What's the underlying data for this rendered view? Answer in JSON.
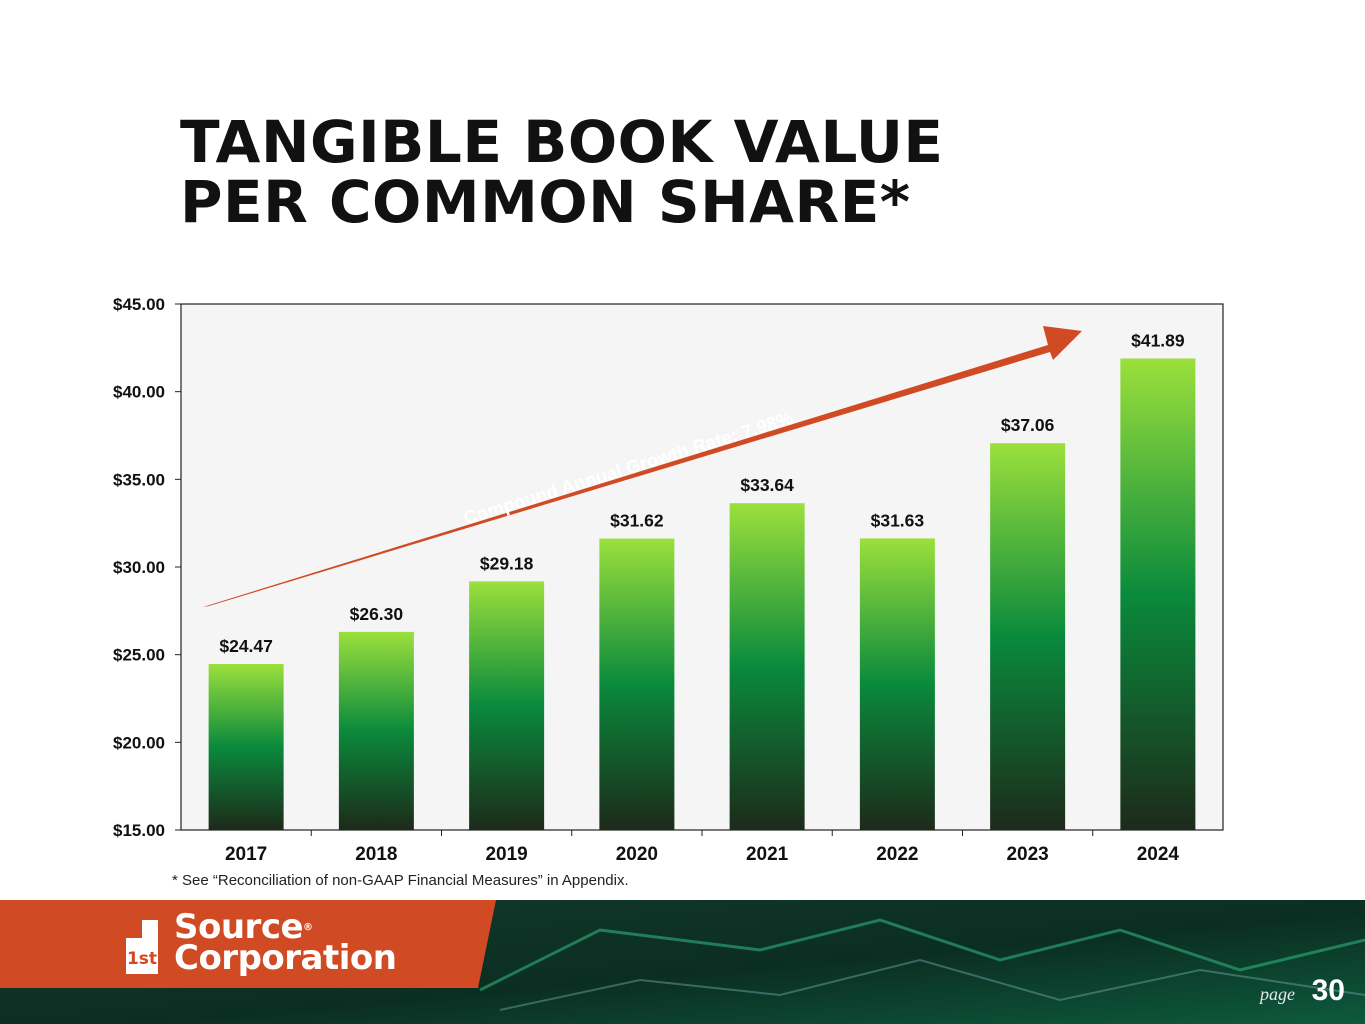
{
  "slide": {
    "title_line1": "TANGIBLE BOOK VALUE",
    "title_line2": "PER COMMON SHARE*",
    "footnote": "* See “Reconciliation of non-GAAP Financial Measures” in Appendix.",
    "page_label": "page",
    "page_number": "30"
  },
  "logo": {
    "mark": "1st",
    "line1": "Source",
    "line2": "Corporation",
    "registered": "®"
  },
  "colors": {
    "accent": "#d04a23",
    "bar_top": "#9be03c",
    "bar_mid": "#0a8a3c",
    "bar_bottom": "#1d2a1a",
    "footer_green": "#0f4a35"
  },
  "chart_data": {
    "type": "bar",
    "categories": [
      "2017",
      "2018",
      "2019",
      "2020",
      "2021",
      "2022",
      "2023",
      "2024"
    ],
    "values": [
      24.47,
      26.3,
      29.18,
      31.62,
      33.64,
      31.63,
      37.06,
      41.89
    ],
    "value_labels": [
      "$24.47",
      "$26.30",
      "$29.18",
      "$31.62",
      "$33.64",
      "$31.63",
      "$37.06",
      "$41.89"
    ],
    "ylim": [
      15,
      45
    ],
    "yticks": [
      15,
      20,
      25,
      30,
      35,
      40,
      45
    ],
    "ytick_labels": [
      "$15.00",
      "$20.00",
      "$25.00",
      "$30.00",
      "$35.00",
      "$40.00",
      "$45.00"
    ],
    "grid": false,
    "annotation": "Compound Annual Growth Rate: 7.98%"
  }
}
